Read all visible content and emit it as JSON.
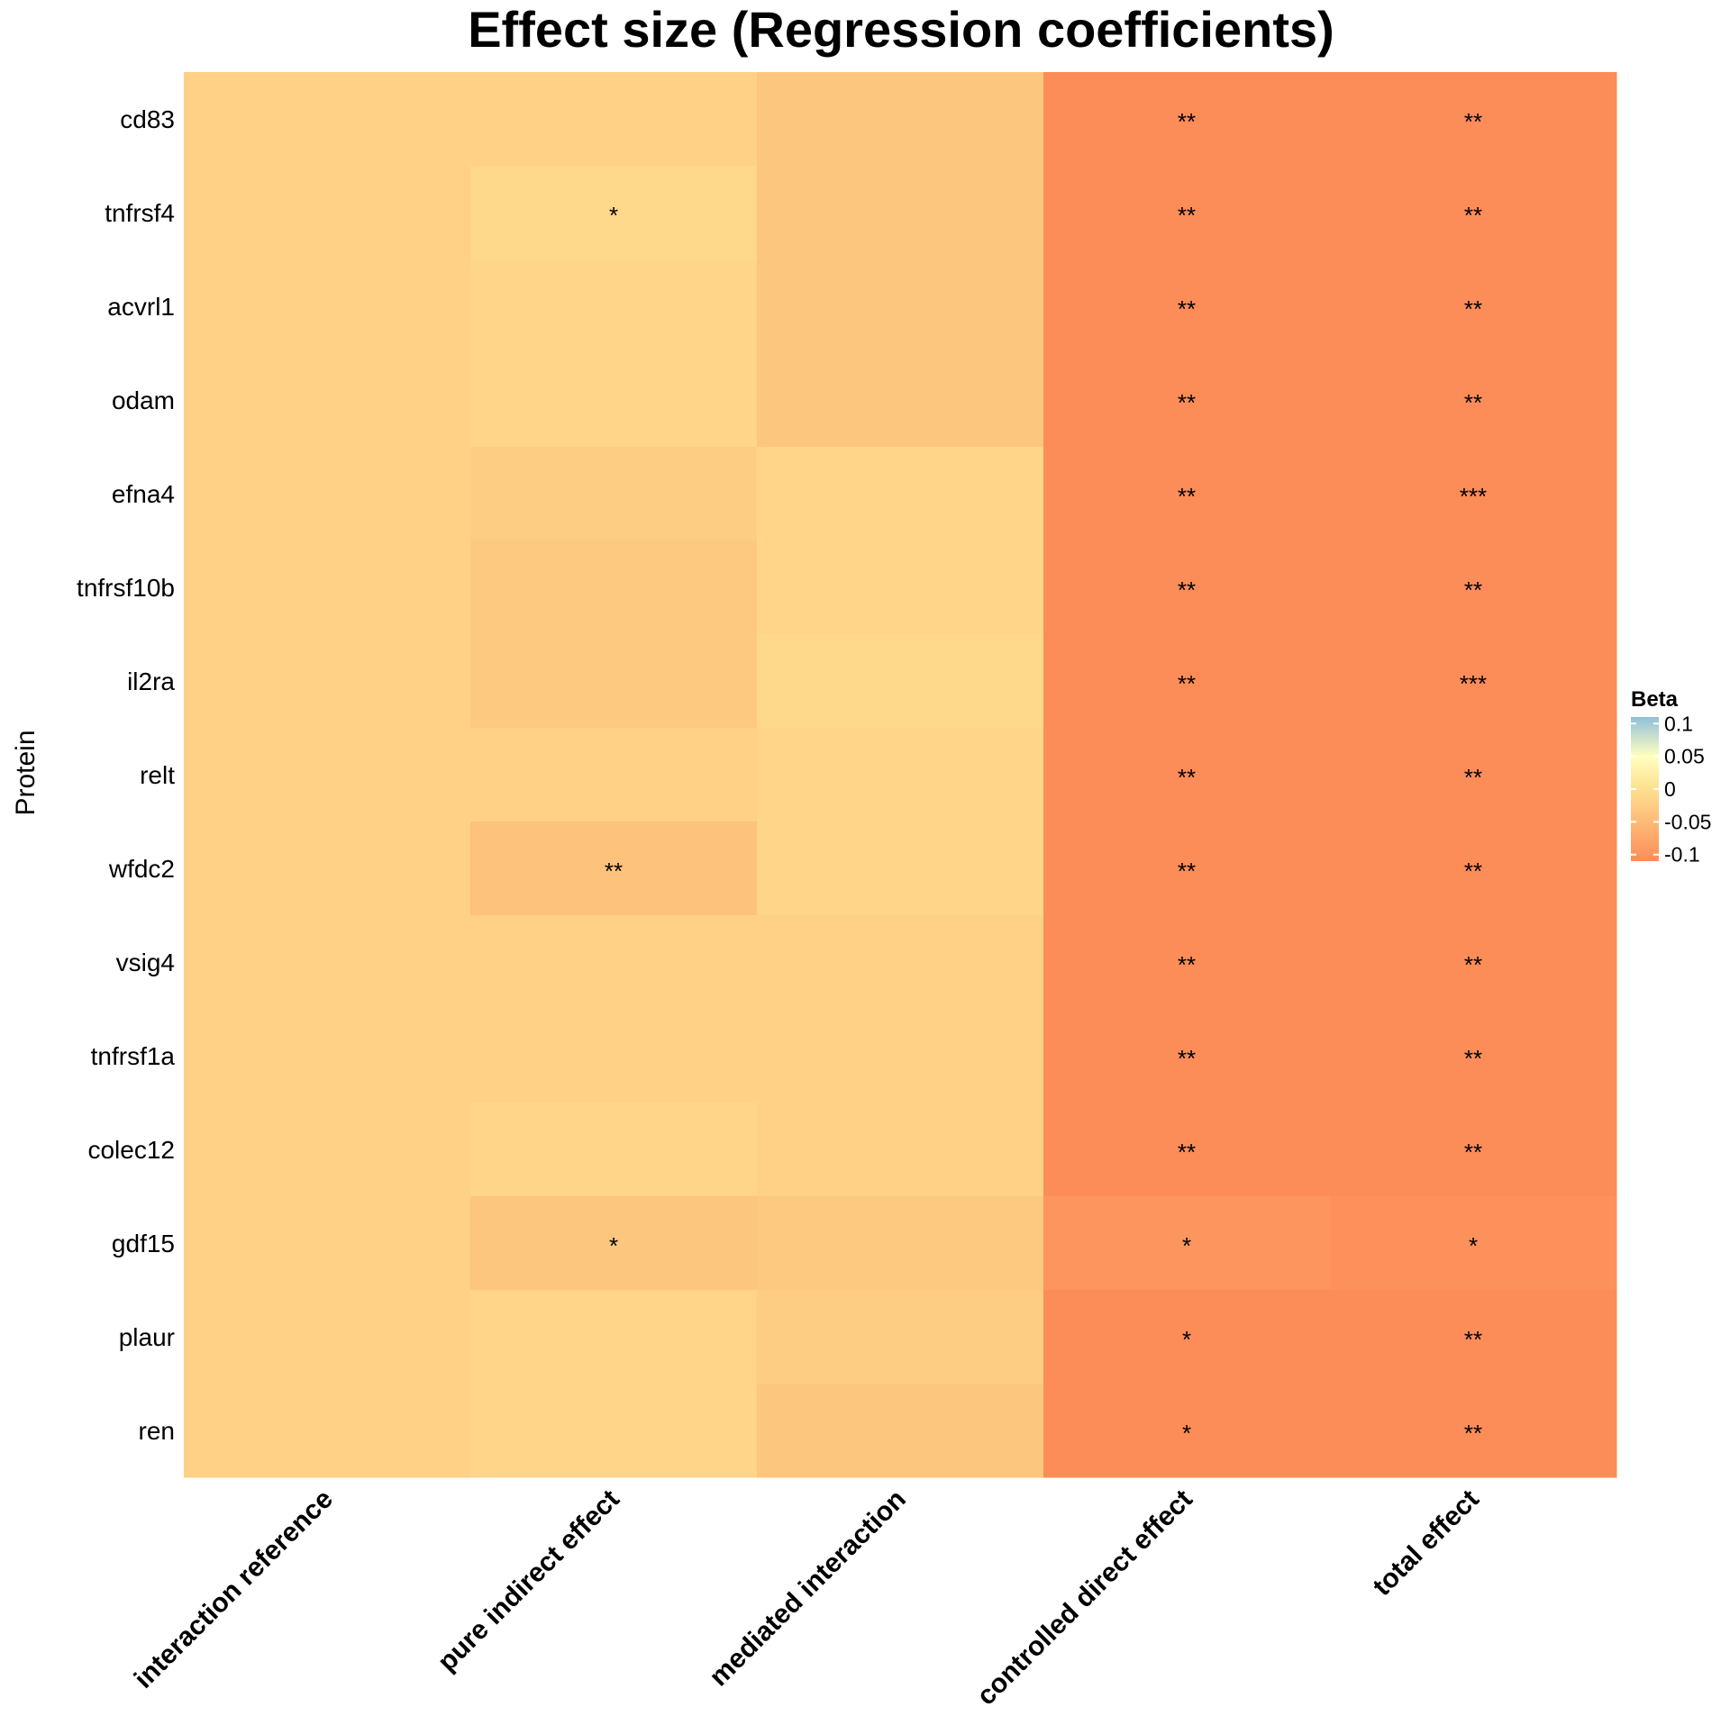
{
  "chart_data": {
    "type": "heatmap",
    "title": "Effect size (Regression coefficients)",
    "ylabel": "Protein",
    "xlabel": "",
    "rows": [
      "cd83",
      "tnfrsf4",
      "acvrl1",
      "odam",
      "efna4",
      "tnfrsf10b",
      "il2ra",
      "relt",
      "wfdc2",
      "vsig4",
      "tnfrsf1a",
      "colec12",
      "gdf15",
      "plaur",
      "ren"
    ],
    "columns": [
      "interaction reference",
      "pure indirect effect",
      "mediated interaction",
      "controlled direct effect",
      "total effect"
    ],
    "values": [
      [
        -0.02,
        -0.02,
        -0.035,
        -0.11,
        -0.11
      ],
      [
        -0.02,
        -0.01,
        -0.035,
        -0.11,
        -0.11
      ],
      [
        -0.02,
        -0.015,
        -0.035,
        -0.11,
        -0.11
      ],
      [
        -0.02,
        -0.015,
        -0.035,
        -0.11,
        -0.11
      ],
      [
        -0.02,
        -0.025,
        -0.015,
        -0.11,
        -0.11
      ],
      [
        -0.02,
        -0.03,
        -0.015,
        -0.11,
        -0.11
      ],
      [
        -0.02,
        -0.03,
        -0.01,
        -0.11,
        -0.11
      ],
      [
        -0.02,
        -0.02,
        -0.015,
        -0.11,
        -0.11
      ],
      [
        -0.02,
        -0.04,
        -0.015,
        -0.11,
        -0.11
      ],
      [
        -0.02,
        -0.02,
        -0.02,
        -0.11,
        -0.11
      ],
      [
        -0.02,
        -0.02,
        -0.02,
        -0.11,
        -0.11
      ],
      [
        -0.02,
        -0.015,
        -0.02,
        -0.11,
        -0.11
      ],
      [
        -0.02,
        -0.035,
        -0.03,
        -0.1,
        -0.105
      ],
      [
        -0.02,
        -0.015,
        -0.025,
        -0.11,
        -0.11
      ],
      [
        -0.02,
        -0.015,
        -0.035,
        -0.11,
        -0.11
      ]
    ],
    "annotations": [
      [
        "",
        "",
        "",
        "**",
        "**"
      ],
      [
        "",
        "*",
        "",
        "**",
        "**"
      ],
      [
        "",
        "",
        "",
        "**",
        "**"
      ],
      [
        "",
        "",
        "",
        "**",
        "**"
      ],
      [
        "",
        "",
        "",
        "**",
        "***"
      ],
      [
        "",
        "",
        "",
        "**",
        "**"
      ],
      [
        "",
        "",
        "",
        "**",
        "***"
      ],
      [
        "",
        "",
        "",
        "**",
        "**"
      ],
      [
        "",
        "**",
        "",
        "**",
        "**"
      ],
      [
        "",
        "",
        "",
        "**",
        "**"
      ],
      [
        "",
        "",
        "",
        "**",
        "**"
      ],
      [
        "",
        "",
        "",
        "**",
        "**"
      ],
      [
        "",
        "*",
        "",
        "*",
        "*"
      ],
      [
        "",
        "",
        "",
        "*",
        "**"
      ],
      [
        "",
        "",
        "",
        "*",
        "**"
      ]
    ],
    "legend": {
      "title": "Beta",
      "position": "right",
      "range": [
        -0.11,
        0.11
      ],
      "ticks": [
        0.1,
        0.05,
        0,
        -0.05,
        -0.1
      ],
      "tick_labels": [
        "0.1",
        "0.05",
        "0",
        "-0.05",
        "-0.1"
      ],
      "colors": {
        "high": "#91bfdb",
        "mid_high": "#ffffbf",
        "mid": "#fee090",
        "low": "#fc8d59"
      }
    },
    "grid": false
  }
}
